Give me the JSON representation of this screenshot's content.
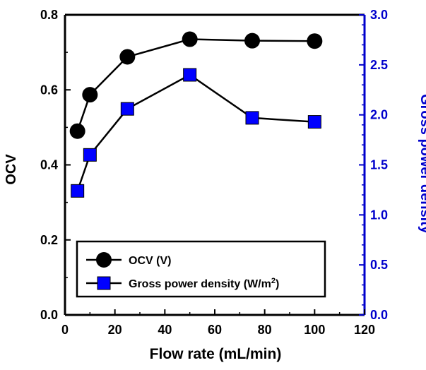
{
  "chart_data": {
    "type": "line",
    "xlabel": "Flow rate (mL/min)",
    "ylabel": "OCV",
    "y2label": "Gross power density",
    "xlim": [
      0,
      120
    ],
    "ylim": [
      0,
      0.8
    ],
    "y2lim": [
      0,
      3.0
    ],
    "xticks": [
      0,
      20,
      40,
      60,
      80,
      100,
      120
    ],
    "xtick_labels": [
      "0",
      "20",
      "40",
      "60",
      "80",
      "100",
      "120"
    ],
    "yticks": [
      0,
      0.2,
      0.4,
      0.6,
      0.8
    ],
    "ytick_labels": [
      "0.0",
      "0.2",
      "0.4",
      "0.6",
      "0.8"
    ],
    "y2ticks": [
      0,
      0.5,
      1.0,
      1.5,
      2.0,
      2.5,
      3.0
    ],
    "y2tick_labels": [
      "0.0",
      "0.5",
      "1.0",
      "1.5",
      "2.0",
      "2.5",
      "3.0"
    ],
    "grid": false,
    "legend_position": "bottom-left",
    "right_axis_color": "#0000cc",
    "series": [
      {
        "name": "OCV (V)",
        "axis": "left",
        "marker": "circle",
        "color": "#000000",
        "x": [
          5,
          10,
          25,
          50,
          75,
          100
        ],
        "values": [
          0.49,
          0.587,
          0.688,
          0.735,
          0.731,
          0.73
        ]
      },
      {
        "name": "Gross power density (W/m",
        "name_sup": "2",
        "name_tail": ")",
        "axis": "right",
        "marker": "square",
        "color": "#0000ff",
        "x": [
          5,
          10,
          25,
          50,
          75,
          100
        ],
        "values": [
          1.24,
          1.6,
          2.06,
          2.4,
          1.97,
          1.93
        ]
      }
    ]
  }
}
